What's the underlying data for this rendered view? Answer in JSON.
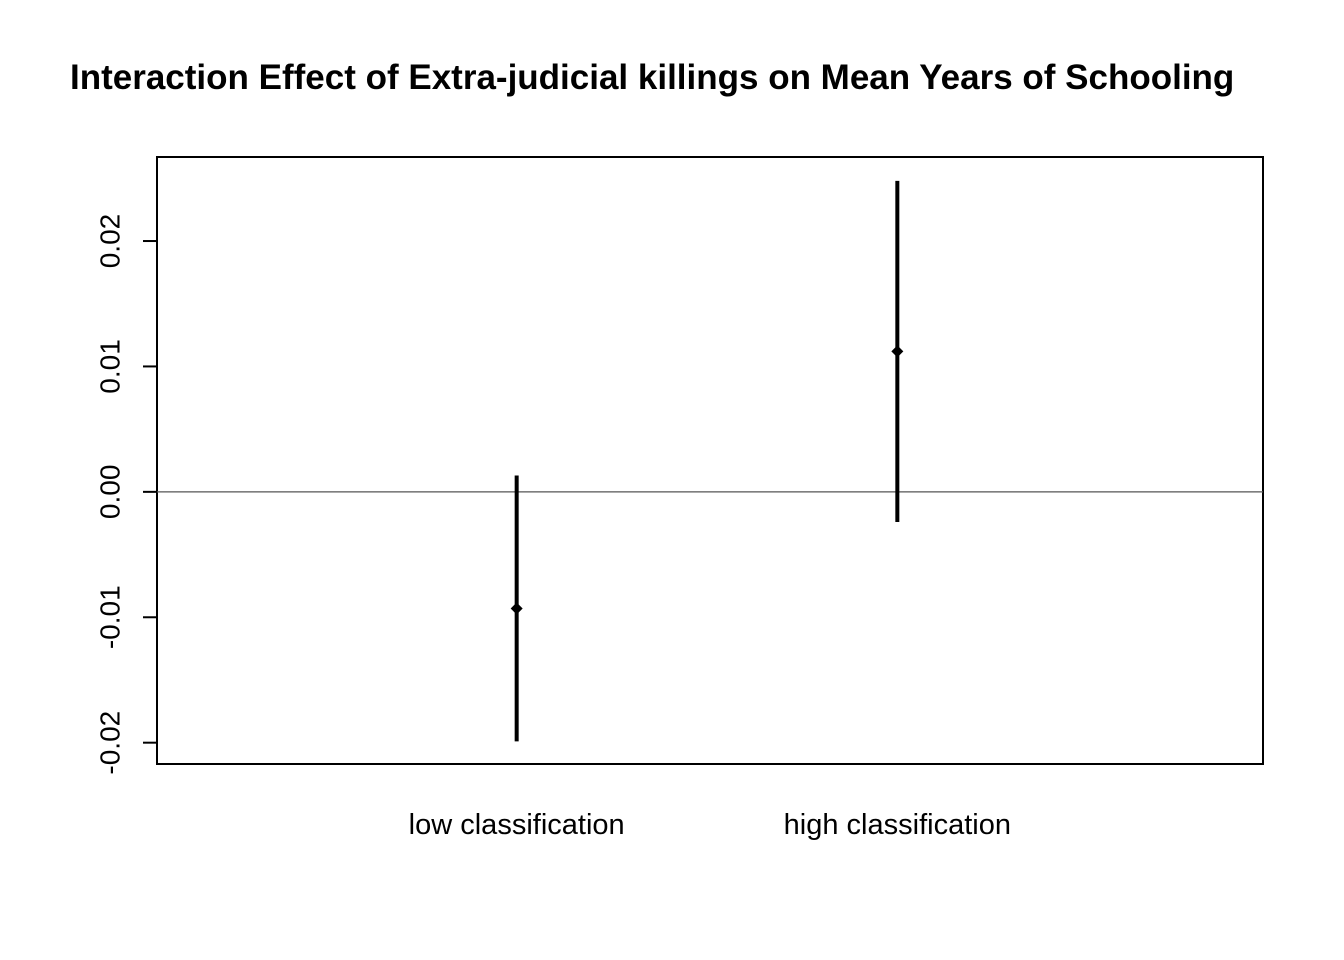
{
  "chart_data": {
    "type": "scatter",
    "title": "Interaction Effect of Extra-judicial killings on Mean Years of Schooling",
    "xlabel": "",
    "ylabel": "",
    "categories": [
      "low classification",
      "high classification"
    ],
    "series": [
      {
        "estimates": [
          -0.0093,
          0.0112
        ],
        "lower": [
          -0.0199,
          -0.0024
        ],
        "upper": [
          0.0013,
          0.0248
        ]
      }
    ],
    "reference_line": 0,
    "ylim": [
      -0.0217,
      0.0267
    ],
    "yticks": [
      -0.02,
      -0.01,
      0.0,
      0.01,
      0.02
    ],
    "ytick_labels": [
      "-0.02",
      "-0.01",
      "0.00",
      "0.01",
      "0.02"
    ],
    "grid": false,
    "legend": "none",
    "colors": {
      "marks": "#000000",
      "reference_line": "#555555",
      "background": "#ffffff"
    }
  }
}
